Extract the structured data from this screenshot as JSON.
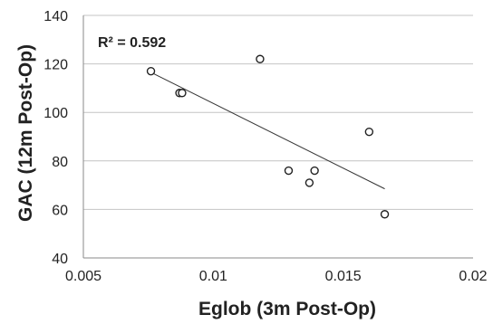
{
  "chart_data": {
    "type": "scatter",
    "title": "",
    "xlabel": "Eglob (3m Post-Op)",
    "ylabel": "GAC (12m Post-Op)",
    "xlim": [
      0.005,
      0.02
    ],
    "ylim": [
      40,
      140
    ],
    "x_ticks": [
      0.005,
      0.01,
      0.015,
      0.02
    ],
    "x_tick_labels": [
      "0.005",
      "0.01",
      "0.015",
      "0.02"
    ],
    "y_ticks": [
      40,
      60,
      80,
      100,
      120,
      140
    ],
    "y_tick_labels": [
      "40",
      "60",
      "80",
      "100",
      "120",
      "140"
    ],
    "grid": "horizontal",
    "legend": "none",
    "series": [
      {
        "points": [
          {
            "x": 0.0076,
            "y": 117
          },
          {
            "x": 0.0087,
            "y": 108
          },
          {
            "x": 0.0088,
            "y": 108
          },
          {
            "x": 0.0118,
            "y": 122
          },
          {
            "x": 0.0129,
            "y": 76
          },
          {
            "x": 0.0137,
            "y": 71
          },
          {
            "x": 0.0139,
            "y": 76
          },
          {
            "x": 0.016,
            "y": 92
          },
          {
            "x": 0.0166,
            "y": 58
          }
        ]
      }
    ],
    "trendline": {
      "type": "linear",
      "x": [
        0.0076,
        0.0166
      ],
      "y": [
        116.5,
        68.5
      ]
    },
    "annotation": "R² = 0.592"
  }
}
